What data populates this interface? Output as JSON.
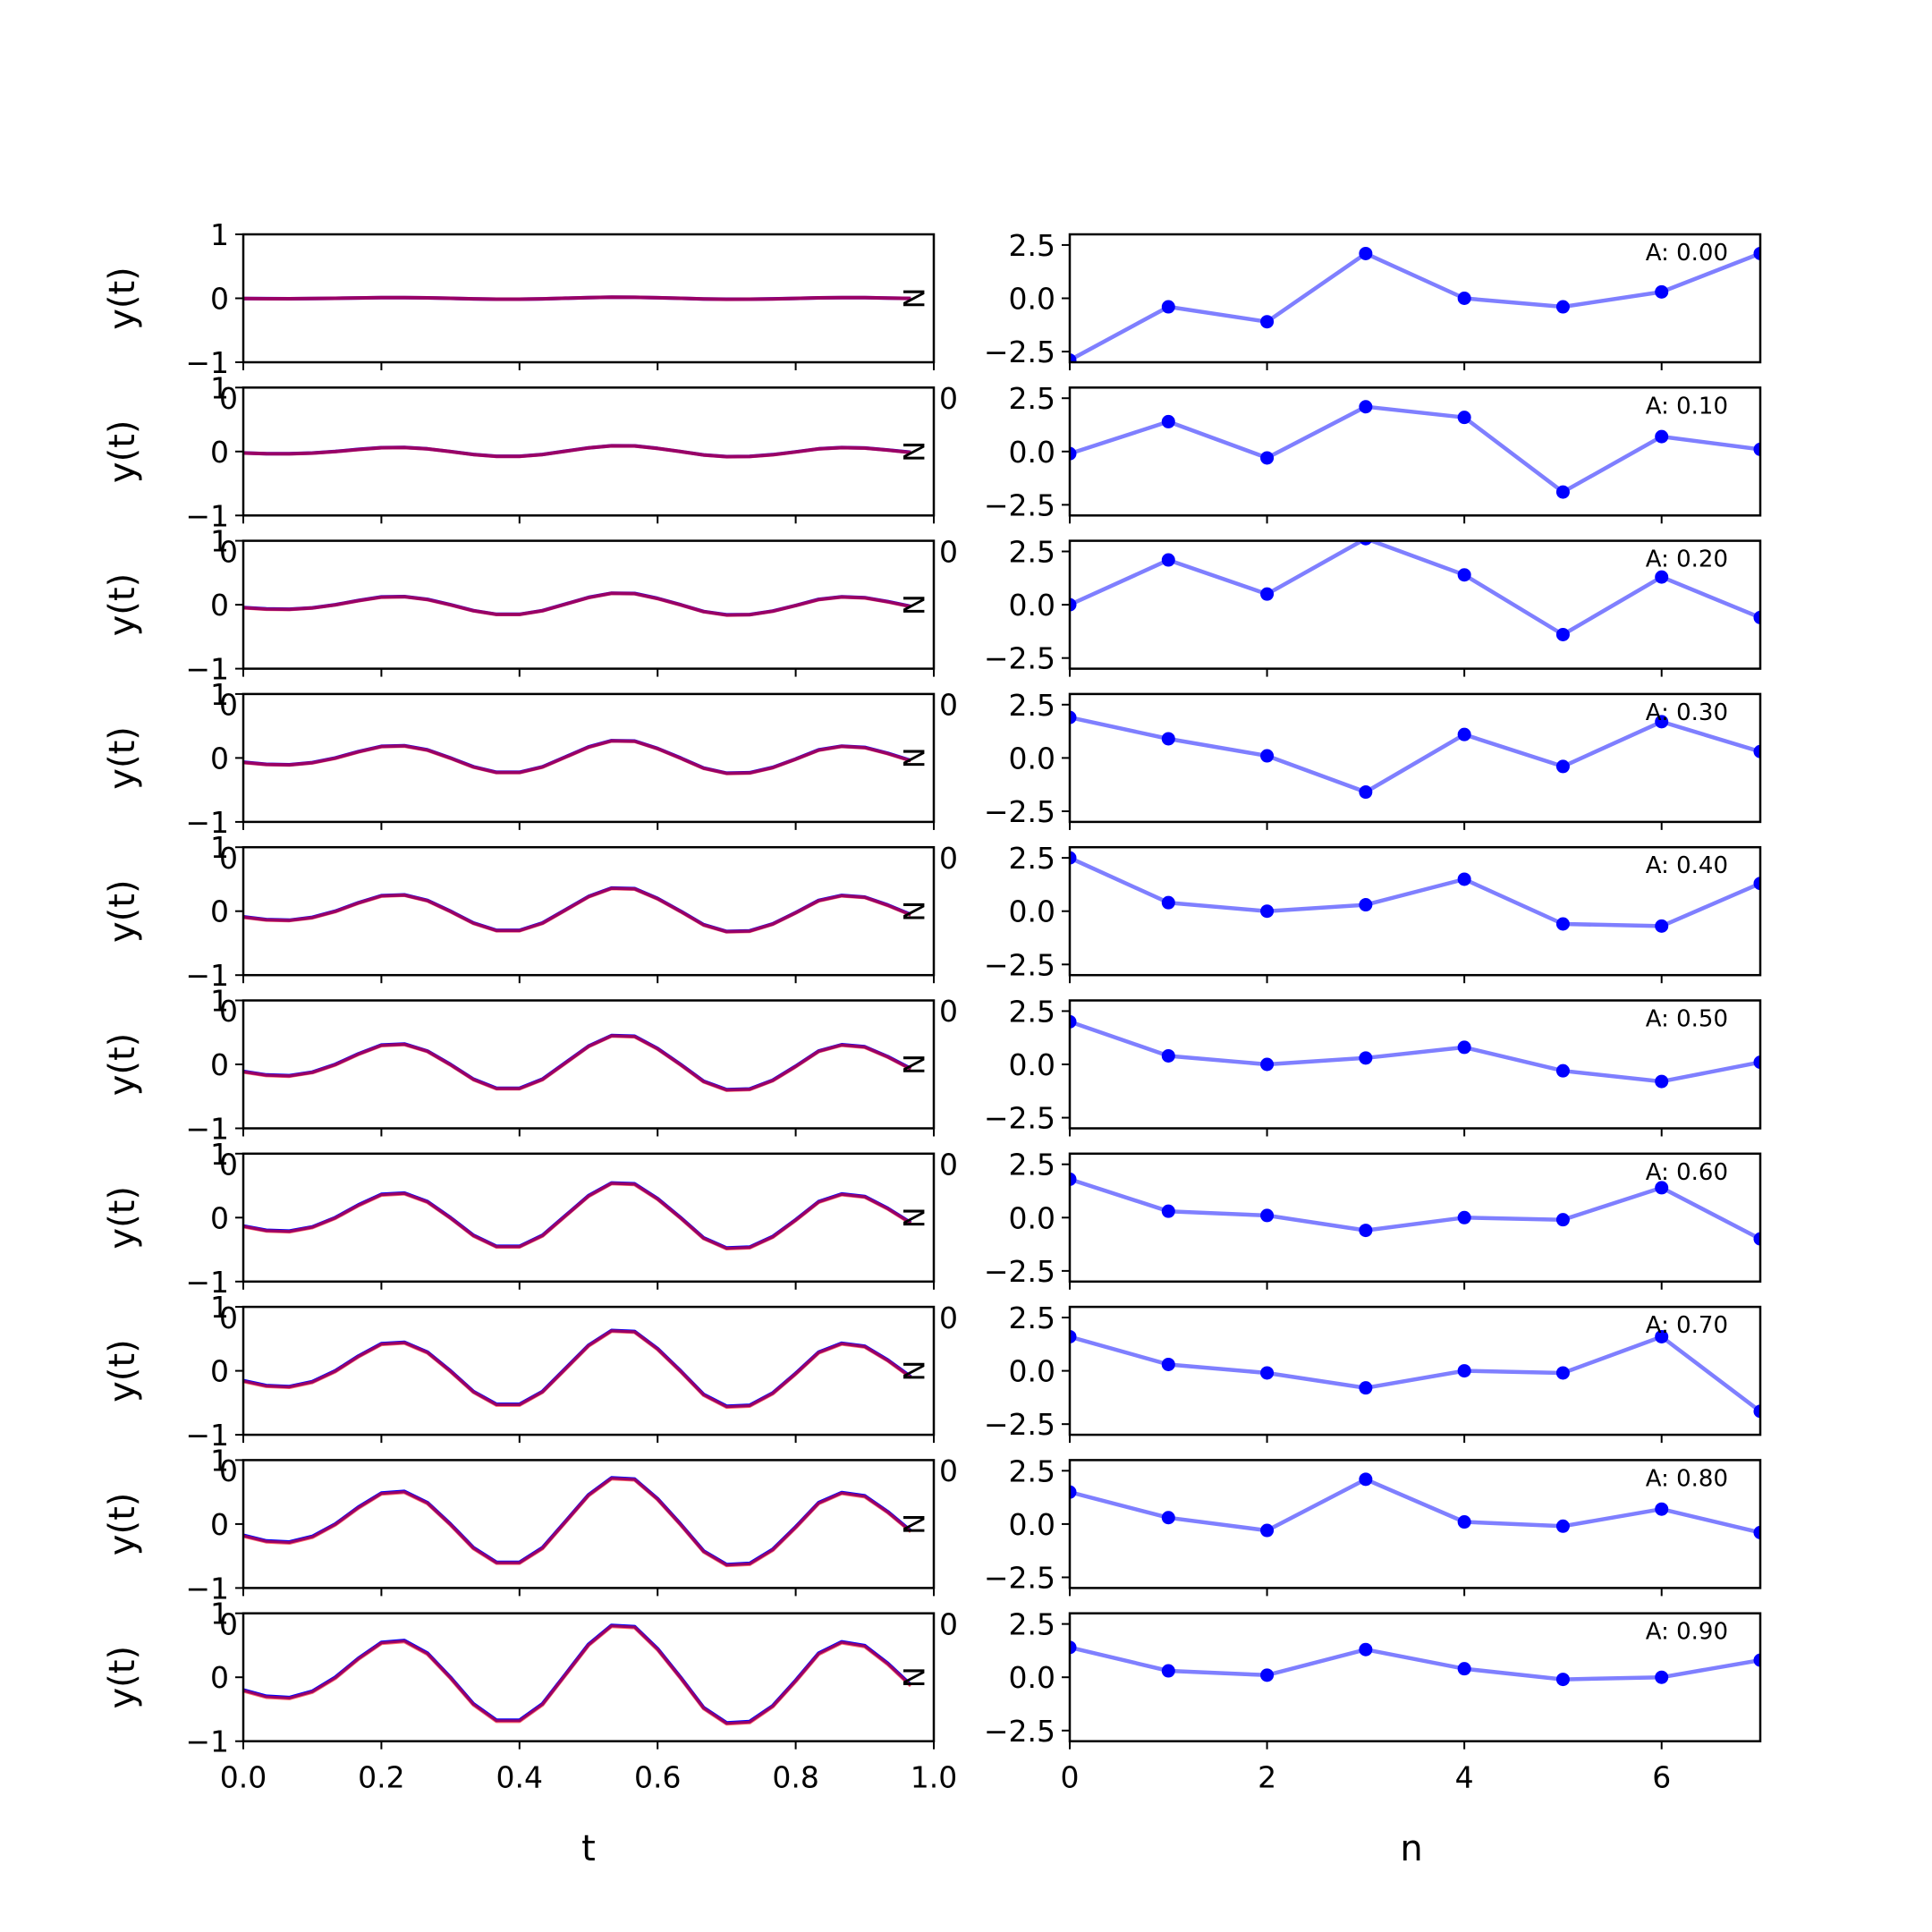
{
  "figure": {
    "left_xlabel": "t",
    "right_xlabel": "n",
    "ylabel": "y(t)",
    "overlap_tick_label": "0",
    "right_text_glyph": "N"
  },
  "colors": {
    "signal_a": "#0000ff",
    "signal_b": "#ff0000",
    "stem_line": "#7f7fff",
    "stem_marker": "#0000ff"
  },
  "chart_data": [
    {
      "type": "line",
      "panel": "left",
      "rows": 10,
      "x": [
        0.0,
        0.0333,
        0.0667,
        0.1,
        0.1333,
        0.1667,
        0.2,
        0.2333,
        0.2667,
        0.3,
        0.3333,
        0.3667,
        0.4,
        0.4333,
        0.4667,
        0.5,
        0.5333,
        0.5667,
        0.6,
        0.6333,
        0.6667,
        0.7,
        0.7333,
        0.7667,
        0.8,
        0.8333,
        0.8667,
        0.9,
        0.9333,
        0.9667
      ],
      "base_shape": [
        -0.2,
        -0.3,
        -0.32,
        -0.22,
        0.0,
        0.3,
        0.55,
        0.58,
        0.38,
        0.0,
        -0.42,
        -0.68,
        -0.68,
        -0.42,
        0.05,
        0.52,
        0.82,
        0.8,
        0.45,
        0.0,
        -0.48,
        -0.72,
        -0.7,
        -0.45,
        -0.05,
        0.38,
        0.56,
        0.5,
        0.22,
        -0.12
      ],
      "amplitudes": [
        0.02,
        0.11,
        0.22,
        0.33,
        0.44,
        0.55,
        0.66,
        0.77,
        0.88,
        0.99
      ],
      "series": [
        {
          "color": "signal_a",
          "offset": 0.0
        },
        {
          "color": "signal_b",
          "offset": -0.015
        }
      ],
      "xlim": [
        0.0,
        1.0
      ],
      "ylim": [
        -1,
        1
      ],
      "yticks": [
        "1",
        "0",
        "−1"
      ],
      "xticks": [
        "0.0",
        "0.2",
        "0.4",
        "0.6",
        "0.8",
        "1.0"
      ],
      "xticks_shown_on_last_row_only": true,
      "xlabel": "t",
      "ylabel": "y(t)"
    },
    {
      "type": "line",
      "panel": "right",
      "rows": 10,
      "x": [
        0,
        1,
        2,
        3,
        4,
        5,
        6,
        7
      ],
      "series": [
        {
          "label": "A: 0.00",
          "values": [
            -2.9,
            -0.4,
            -1.1,
            2.1,
            0.0,
            -0.4,
            0.3,
            2.1
          ]
        },
        {
          "label": "A: 0.10",
          "values": [
            -0.1,
            1.4,
            -0.3,
            2.1,
            1.6,
            -1.9,
            0.7,
            0.1
          ]
        },
        {
          "label": "A: 0.20",
          "values": [
            0.0,
            2.1,
            0.5,
            3.1,
            1.4,
            -1.4,
            1.3,
            -0.6
          ]
        },
        {
          "label": "A: 0.30",
          "values": [
            1.9,
            0.9,
            0.1,
            -1.6,
            1.1,
            -0.4,
            1.7,
            0.3
          ]
        },
        {
          "label": "A: 0.40",
          "values": [
            2.5,
            0.4,
            0.0,
            0.3,
            1.5,
            -0.6,
            -0.7,
            1.3
          ]
        },
        {
          "label": "A: 0.50",
          "values": [
            2.0,
            0.4,
            0.0,
            0.3,
            0.8,
            -0.3,
            -0.8,
            0.1
          ]
        },
        {
          "label": "A: 0.60",
          "values": [
            1.8,
            0.3,
            0.1,
            -0.6,
            0.0,
            -0.1,
            1.4,
            -1.0
          ]
        },
        {
          "label": "A: 0.70",
          "values": [
            1.6,
            0.3,
            -0.1,
            -0.8,
            0.0,
            -0.1,
            1.6,
            -1.9
          ]
        },
        {
          "label": "A: 0.80",
          "values": [
            1.5,
            0.3,
            -0.3,
            2.1,
            0.1,
            -0.1,
            0.7,
            -0.4
          ]
        },
        {
          "label": "A: 0.90",
          "values": [
            1.4,
            0.3,
            0.1,
            1.3,
            0.4,
            -0.1,
            0.0,
            0.8
          ]
        }
      ],
      "xlim": [
        0,
        7
      ],
      "ylim": [
        -3,
        3
      ],
      "yticks": [
        "2.5",
        "0.0",
        "−2.5"
      ],
      "xticks": [
        "0",
        "2",
        "4",
        "6"
      ],
      "xticks_shown_on_last_row_only": true,
      "xlabel": "n"
    }
  ]
}
